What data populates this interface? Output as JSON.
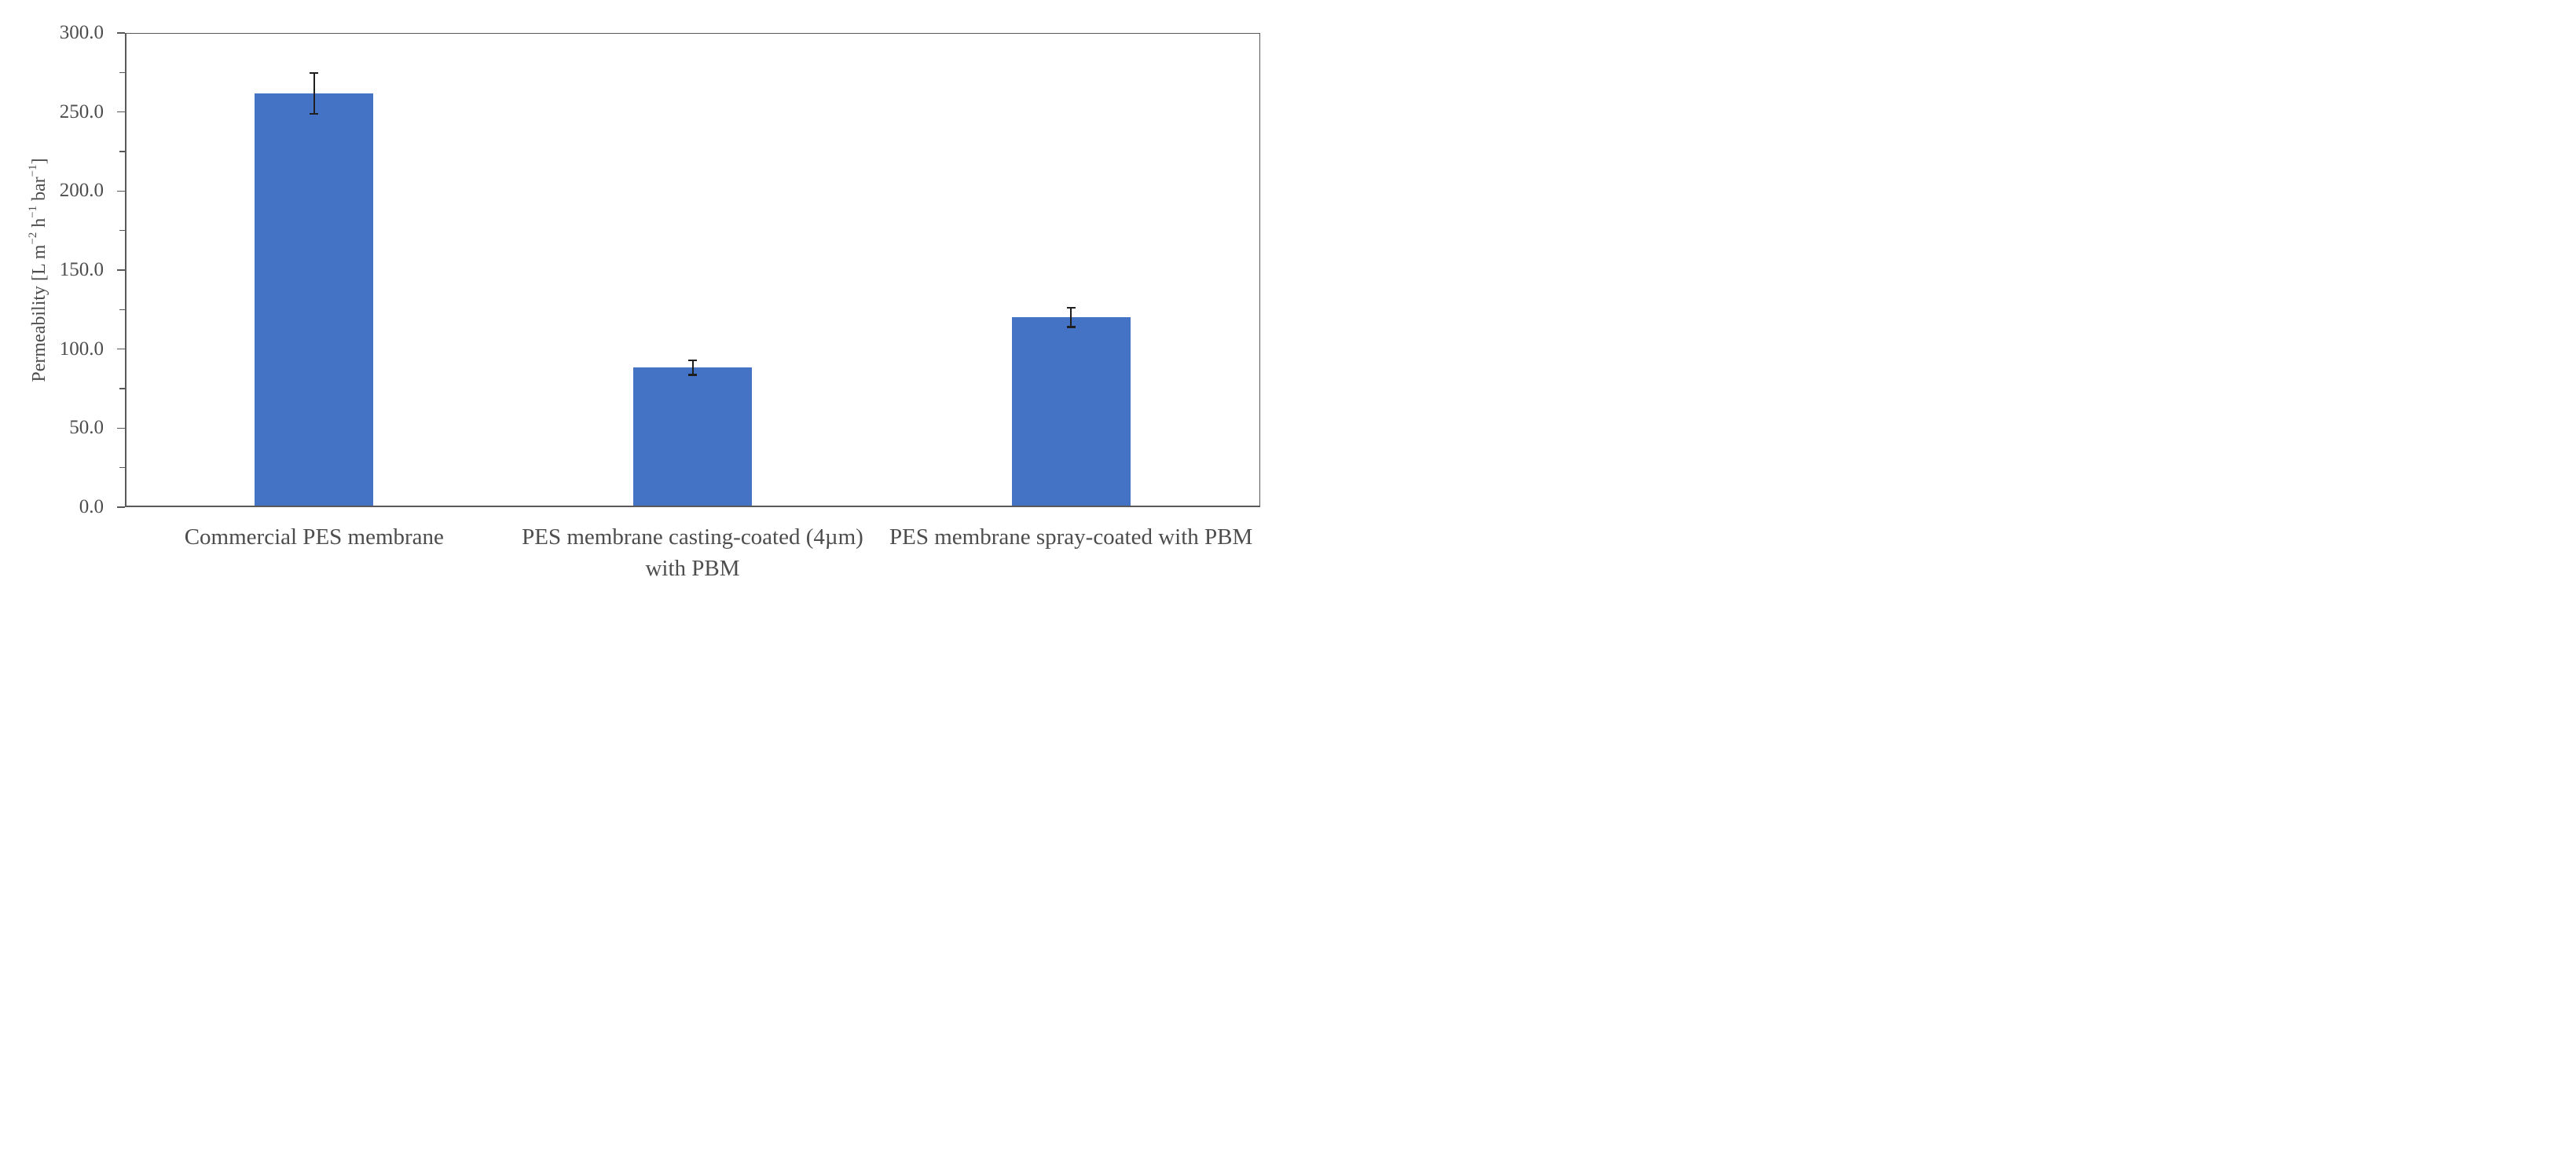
{
  "figure": {
    "background": "#ffffff"
  },
  "chart_data": {
    "type": "bar",
    "title": "",
    "categories": [
      "Commercial PES membrane",
      "PES membrane casting-coated (4µm)\nwith PBM",
      "PES membrane spray-coated with PBM"
    ],
    "values": [
      261.8,
      88.5,
      120.3
    ],
    "error_bars": [
      12.9,
      4.6,
      6.1
    ],
    "ylabel": "Permeability [L m⁻² h⁻¹ bar⁻¹]",
    "ylabel_parts": [
      {
        "text": "Permeability [L m"
      },
      {
        "sup": "−2"
      },
      {
        "text": " h"
      },
      {
        "sup": "−1"
      },
      {
        "text": " bar"
      },
      {
        "sup": "−1"
      },
      {
        "text": "]"
      }
    ],
    "ylim": [
      0,
      300
    ],
    "y_major_ticks": [
      {
        "value": 0,
        "label": "0.0"
      },
      {
        "value": 50,
        "label": "50.0"
      },
      {
        "value": 100,
        "label": "100.0"
      },
      {
        "value": 150,
        "label": "150.0"
      },
      {
        "value": 200,
        "label": "200.0"
      },
      {
        "value": 250,
        "label": "250.0"
      },
      {
        "value": 300,
        "label": "300.0"
      }
    ],
    "y_minor_ticks": [
      25,
      75,
      125,
      175,
      225,
      275
    ],
    "grid": false,
    "legend_position": "none",
    "colors": {
      "bar": "#4472C4",
      "error_bar": "#1f1f1f",
      "axis": "#595959",
      "text": "#4d4d4d"
    }
  }
}
